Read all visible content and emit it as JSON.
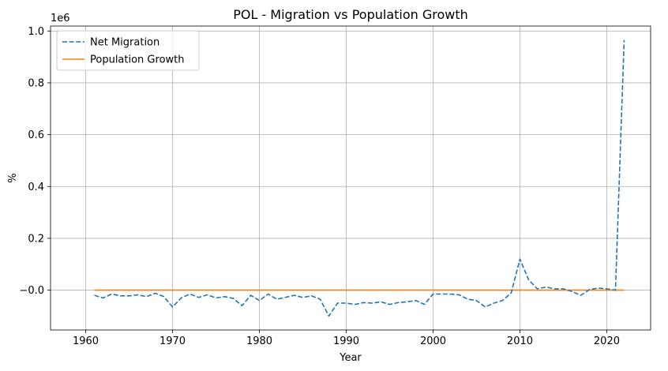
{
  "chart_data": {
    "type": "line",
    "title": "POL - Migration vs Population Growth",
    "xlabel": "Year",
    "ylabel": "%",
    "y_offset_label": "1e6",
    "y_scale_factor": 1000000,
    "xlim": [
      1955.95,
      2025.05
    ],
    "ylim": [
      -0.1536,
      1.0192
    ],
    "x_ticks": [
      1960,
      1970,
      1980,
      1990,
      2000,
      2010,
      2020
    ],
    "y_ticks": [
      0.0,
      0.2,
      0.4,
      0.6,
      0.8,
      1.0
    ],
    "y_tick_labels": [
      "−0.0",
      "0.2",
      "0.4",
      "0.6",
      "0.8",
      "1.0"
    ],
    "grid": true,
    "legend_position": "top-left",
    "series": [
      {
        "name": "Net Migration",
        "color": "#1f77b4",
        "style": "dashed",
        "x": [
          1961,
          1962,
          1963,
          1964,
          1965,
          1966,
          1967,
          1968,
          1969,
          1970,
          1971,
          1972,
          1973,
          1974,
          1975,
          1976,
          1977,
          1978,
          1979,
          1980,
          1981,
          1982,
          1983,
          1984,
          1985,
          1986,
          1987,
          1988,
          1989,
          1990,
          1991,
          1992,
          1993,
          1994,
          1995,
          1996,
          1997,
          1998,
          1999,
          2000,
          2001,
          2002,
          2003,
          2004,
          2005,
          2006,
          2007,
          2008,
          2009,
          2010,
          2011,
          2012,
          2013,
          2014,
          2015,
          2016,
          2017,
          2018,
          2019,
          2020,
          2021,
          2022
        ],
        "values": [
          -0.02,
          -0.03,
          -0.015,
          -0.022,
          -0.022,
          -0.018,
          -0.025,
          -0.012,
          -0.025,
          -0.065,
          -0.03,
          -0.015,
          -0.028,
          -0.018,
          -0.03,
          -0.025,
          -0.032,
          -0.06,
          -0.02,
          -0.04,
          -0.015,
          -0.035,
          -0.028,
          -0.02,
          -0.028,
          -0.022,
          -0.035,
          -0.1,
          -0.05,
          -0.05,
          -0.055,
          -0.048,
          -0.05,
          -0.045,
          -0.055,
          -0.048,
          -0.045,
          -0.04,
          -0.055,
          -0.015,
          -0.015,
          -0.015,
          -0.018,
          -0.035,
          -0.04,
          -0.065,
          -0.05,
          -0.04,
          -0.01,
          0.12,
          0.04,
          0.005,
          0.012,
          0.005,
          0.005,
          -0.005,
          -0.02,
          0.002,
          0.008,
          0.005,
          0.0,
          0.965
        ]
      },
      {
        "name": "Population Growth",
        "color": "#ff7f0e",
        "style": "solid",
        "x": [
          1961,
          1962,
          1963,
          1964,
          1965,
          1966,
          1967,
          1968,
          1969,
          1970,
          1971,
          1972,
          1973,
          1974,
          1975,
          1976,
          1977,
          1978,
          1979,
          1980,
          1981,
          1982,
          1983,
          1984,
          1985,
          1986,
          1987,
          1988,
          1989,
          1990,
          1991,
          1992,
          1993,
          1994,
          1995,
          1996,
          1997,
          1998,
          1999,
          2000,
          2001,
          2002,
          2003,
          2004,
          2005,
          2006,
          2007,
          2008,
          2009,
          2010,
          2011,
          2012,
          2013,
          2014,
          2015,
          2016,
          2017,
          2018,
          2019,
          2020,
          2021,
          2022
        ],
        "values": [
          0,
          0,
          0,
          0,
          0,
          0,
          0,
          0,
          0,
          0,
          0,
          0,
          0,
          0,
          0,
          0,
          0,
          0,
          0,
          0,
          0,
          0,
          0,
          0,
          0,
          0,
          0,
          0,
          0,
          0,
          0,
          0,
          0,
          0,
          0,
          0,
          0,
          0,
          0,
          0,
          0,
          0,
          0,
          0,
          0,
          0,
          0,
          0,
          0,
          0,
          0,
          0,
          0,
          0,
          0,
          0,
          0,
          0,
          0,
          0,
          0,
          0
        ]
      }
    ]
  }
}
